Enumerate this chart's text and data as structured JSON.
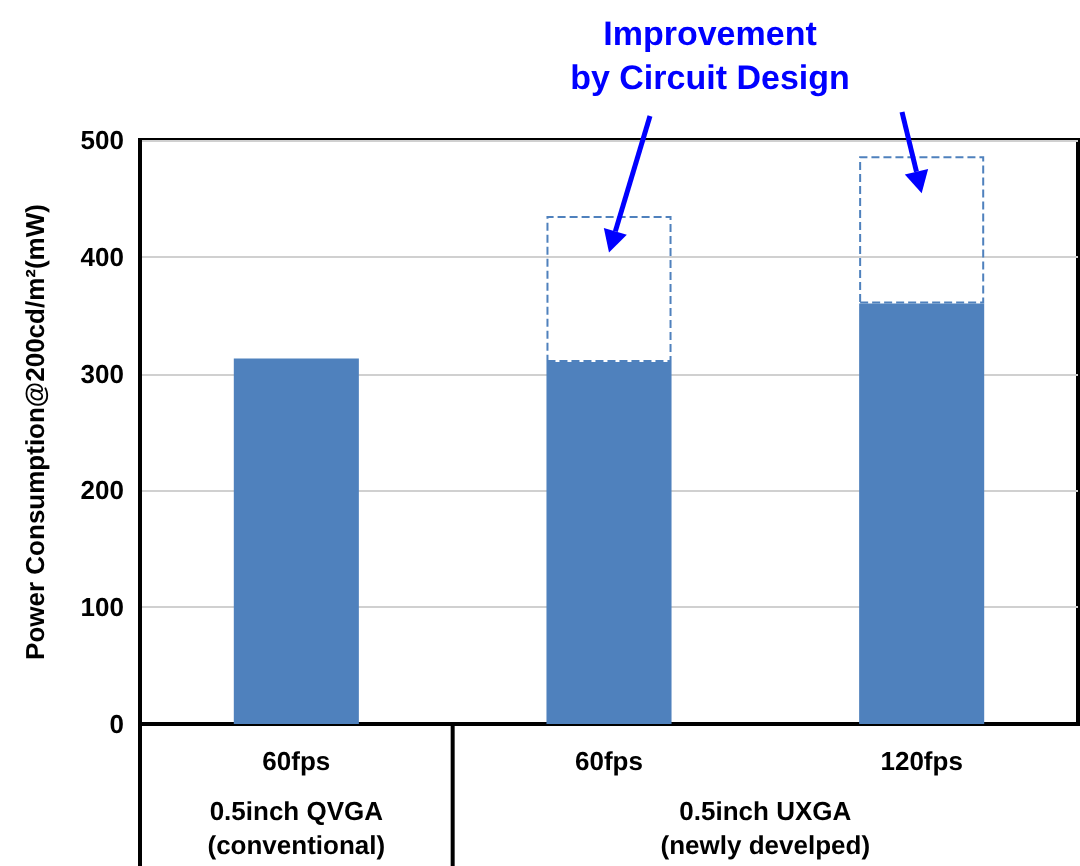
{
  "chart_data": {
    "type": "bar",
    "stacked": true,
    "ylabel": "Power Consumption@200cd/m²(mW)",
    "categories": [
      "60fps",
      "60fps",
      "120fps"
    ],
    "series": [
      {
        "color": "#4f81bd",
        "values": [
          313,
          310,
          360
        ]
      },
      {
        "color": "#4f81bd",
        "line_style": "dashed",
        "values": [
          null,
          125,
          126
        ]
      }
    ],
    "ylim": [
      0,
      500
    ],
    "yticks": [
      0,
      100,
      200,
      300,
      400,
      500
    ],
    "grid": "y",
    "annotations": [
      "Improvement\nby Circuit Design",
      "0.5inch QVGA\n(conventional)",
      "0.5inch UXGA\n(newly develped)"
    ]
  }
}
